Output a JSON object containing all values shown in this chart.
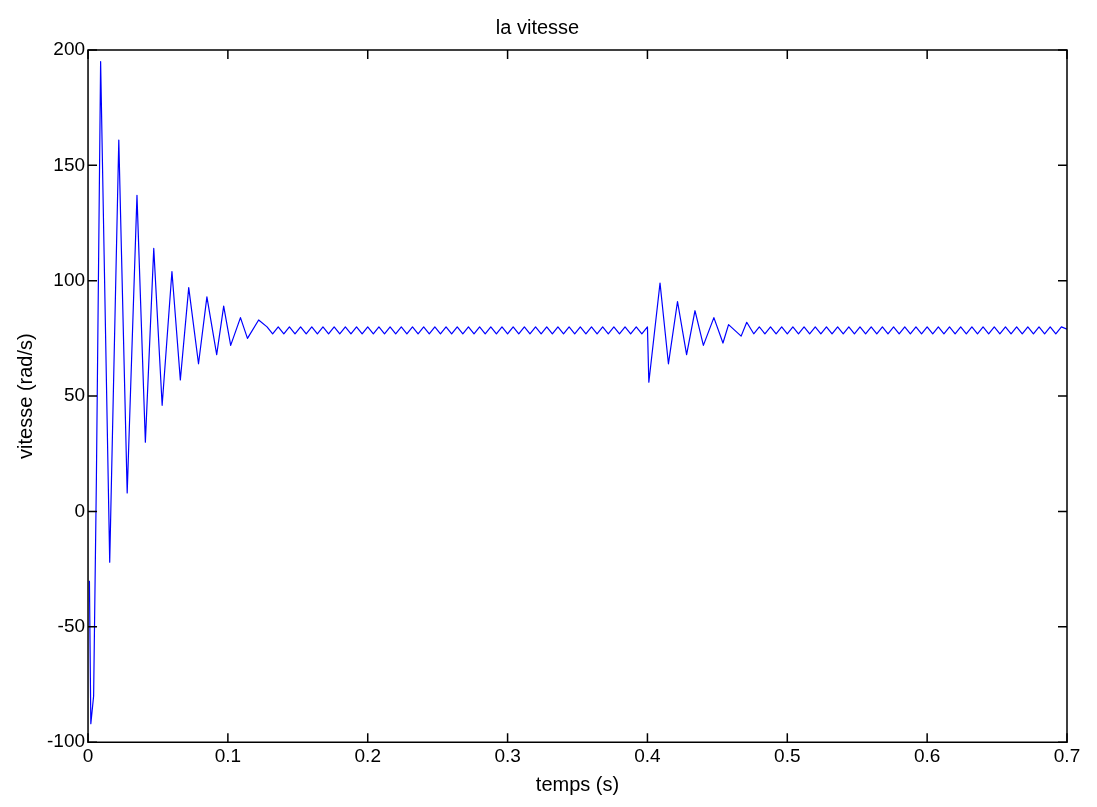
{
  "chart_data": {
    "type": "line",
    "title": "la vitesse",
    "xlabel": "temps (s)",
    "ylabel": "vitesse (rad/s)",
    "series": [
      {
        "color": "#0000ff",
        "x": [
          0.001,
          0.002,
          0.004,
          0.006,
          0.009,
          0.0155,
          0.022,
          0.028,
          0.035,
          0.041,
          0.047,
          0.053,
          0.06,
          0.066,
          0.072,
          0.079,
          0.085,
          0.092,
          0.097,
          0.102,
          0.109,
          0.114,
          0.122,
          0.128,
          0.132,
          0.136,
          0.14,
          0.144,
          0.148,
          0.152,
          0.156,
          0.16,
          0.164,
          0.168,
          0.172,
          0.176,
          0.18,
          0.184,
          0.188,
          0.192,
          0.196,
          0.2,
          0.204,
          0.208,
          0.212,
          0.216,
          0.22,
          0.224,
          0.228,
          0.232,
          0.236,
          0.24,
          0.244,
          0.248,
          0.252,
          0.256,
          0.26,
          0.264,
          0.268,
          0.272,
          0.276,
          0.28,
          0.284,
          0.288,
          0.292,
          0.296,
          0.3,
          0.304,
          0.308,
          0.312,
          0.316,
          0.32,
          0.324,
          0.328,
          0.332,
          0.336,
          0.34,
          0.344,
          0.348,
          0.352,
          0.356,
          0.36,
          0.364,
          0.368,
          0.372,
          0.376,
          0.38,
          0.384,
          0.388,
          0.392,
          0.396,
          0.4,
          0.401,
          0.409,
          0.415,
          0.4215,
          0.428,
          0.434,
          0.44,
          0.4475,
          0.454,
          0.458,
          0.467,
          0.471,
          0.476,
          0.48,
          0.484,
          0.488,
          0.492,
          0.496,
          0.5,
          0.504,
          0.508,
          0.512,
          0.516,
          0.52,
          0.524,
          0.528,
          0.532,
          0.536,
          0.54,
          0.544,
          0.548,
          0.552,
          0.556,
          0.56,
          0.564,
          0.568,
          0.572,
          0.576,
          0.58,
          0.584,
          0.588,
          0.592,
          0.596,
          0.6,
          0.604,
          0.608,
          0.612,
          0.616,
          0.62,
          0.624,
          0.628,
          0.632,
          0.636,
          0.64,
          0.644,
          0.648,
          0.652,
          0.656,
          0.66,
          0.664,
          0.668,
          0.672,
          0.676,
          0.68,
          0.684,
          0.688,
          0.692,
          0.696,
          0.7
        ],
        "values": [
          -30,
          -92,
          -80,
          15,
          195,
          -22,
          161,
          8,
          137,
          30,
          114,
          46,
          104,
          57,
          97,
          64,
          93,
          68,
          89,
          72,
          84,
          75,
          83,
          80,
          77,
          80,
          77,
          80,
          77,
          80,
          77,
          80,
          77,
          80,
          77,
          80,
          77,
          80,
          77,
          80,
          77,
          80,
          77,
          80,
          77,
          80,
          77,
          80,
          77,
          80,
          77,
          80,
          77,
          80,
          77,
          80,
          77,
          80,
          77,
          80,
          77,
          80,
          77,
          80,
          77,
          80,
          77,
          80,
          77,
          80,
          77,
          80,
          77,
          80,
          77,
          80,
          77,
          80,
          77,
          80,
          77,
          80,
          77,
          80,
          77,
          80,
          77,
          80,
          77,
          80,
          77,
          80,
          56,
          99,
          64,
          91,
          68,
          87,
          72,
          84,
          73,
          81,
          76,
          82,
          77,
          80,
          77,
          80,
          77,
          80,
          77,
          80,
          77,
          80,
          77,
          80,
          77,
          80,
          77,
          80,
          77,
          80,
          77,
          80,
          77,
          80,
          77,
          80,
          77,
          80,
          77,
          80,
          77,
          80,
          77,
          80,
          77,
          80,
          77,
          80,
          77,
          80,
          77,
          80,
          77,
          80,
          77,
          80,
          77,
          80,
          77,
          80,
          77,
          80,
          77,
          80,
          77,
          80,
          77,
          80,
          79
        ]
      }
    ],
    "xlim": [
      0,
      0.7
    ],
    "xticks": [
      0,
      0.1,
      0.2,
      0.3,
      0.4,
      0.5,
      0.6,
      0.7
    ],
    "ylim": [
      -100,
      200
    ],
    "yticks": [
      -100,
      -50,
      0,
      50,
      100,
      150,
      200
    ],
    "grid": false,
    "legend": false,
    "marker": "none",
    "line_style": "solid"
  }
}
